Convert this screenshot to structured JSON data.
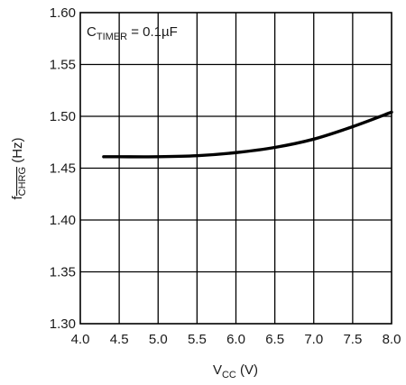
{
  "chart_data": {
    "type": "line",
    "xlabel": {
      "main": "V",
      "sub": "CC",
      "tail": " (V)"
    },
    "ylabel": {
      "main": "f",
      "sub": "CHRG",
      "tail": " (Hz)"
    },
    "annotation": {
      "main": "C",
      "sub": "TIMER",
      "tail": " = 0.1µF"
    },
    "xlim": [
      4.0,
      8.0
    ],
    "ylim": [
      1.3,
      1.6
    ],
    "x_ticks": [
      "4.0",
      "4.5",
      "5.0",
      "5.5",
      "6.0",
      "6.5",
      "7.0",
      "7.5",
      "8.0"
    ],
    "y_ticks": [
      "1.30",
      "1.35",
      "1.40",
      "1.45",
      "1.50",
      "1.55",
      "1.60"
    ],
    "grid": true,
    "series": [
      {
        "x": [
          4.3,
          4.5,
          5.0,
          5.5,
          6.0,
          6.5,
          7.0,
          7.5,
          8.0
        ],
        "y": [
          1.461,
          1.461,
          1.461,
          1.462,
          1.465,
          1.47,
          1.478,
          1.49,
          1.504
        ]
      }
    ]
  }
}
